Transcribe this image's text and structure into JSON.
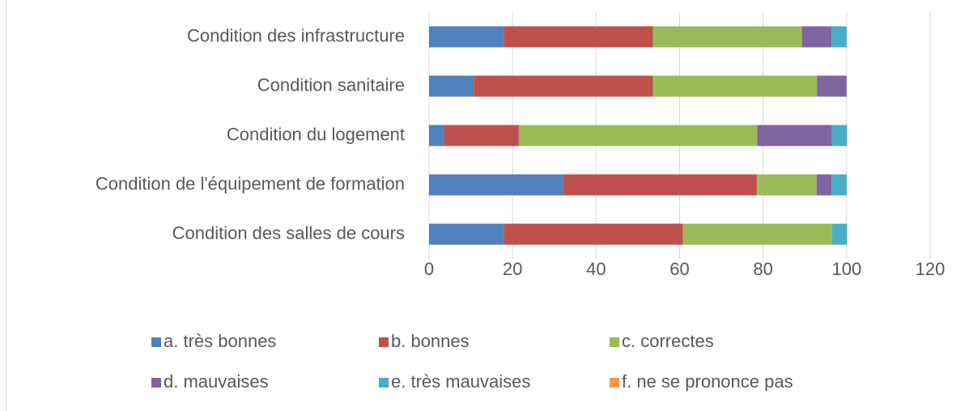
{
  "chart_data": {
    "type": "stacked_bar_horizontal",
    "categories": [
      "Condition des infrastructure",
      "Condition sanitaire",
      "Condition du logement",
      "Condition de l'équipement de formation",
      "Condition des salles de cours"
    ],
    "series": [
      {
        "name": "a. très bonnes",
        "color": "#4f81bd",
        "values": [
          17.9,
          10.7,
          3.6,
          32.1,
          17.9
        ]
      },
      {
        "name": "b. bonnes",
        "color": "#c0504d",
        "values": [
          35.7,
          42.9,
          17.9,
          46.4,
          42.9
        ]
      },
      {
        "name": "c. correctes",
        "color": "#9bbb59",
        "values": [
          35.7,
          39.3,
          57.1,
          14.3,
          35.7
        ]
      },
      {
        "name": "d. mauvaises",
        "color": "#8064a2",
        "values": [
          7.1,
          7.1,
          17.9,
          3.6,
          0
        ]
      },
      {
        "name": "e. très mauvaises",
        "color": "#4bacc6",
        "values": [
          3.6,
          0,
          3.6,
          3.6,
          3.6
        ]
      },
      {
        "name": "f. ne se prononce pas",
        "color": "#f79646",
        "values": [
          0,
          0,
          0,
          0,
          0
        ]
      }
    ],
    "xlim": [
      0,
      120
    ],
    "xticks": [
      0,
      20,
      40,
      60,
      80,
      100,
      120
    ],
    "grid": true,
    "legend": "bottom"
  }
}
